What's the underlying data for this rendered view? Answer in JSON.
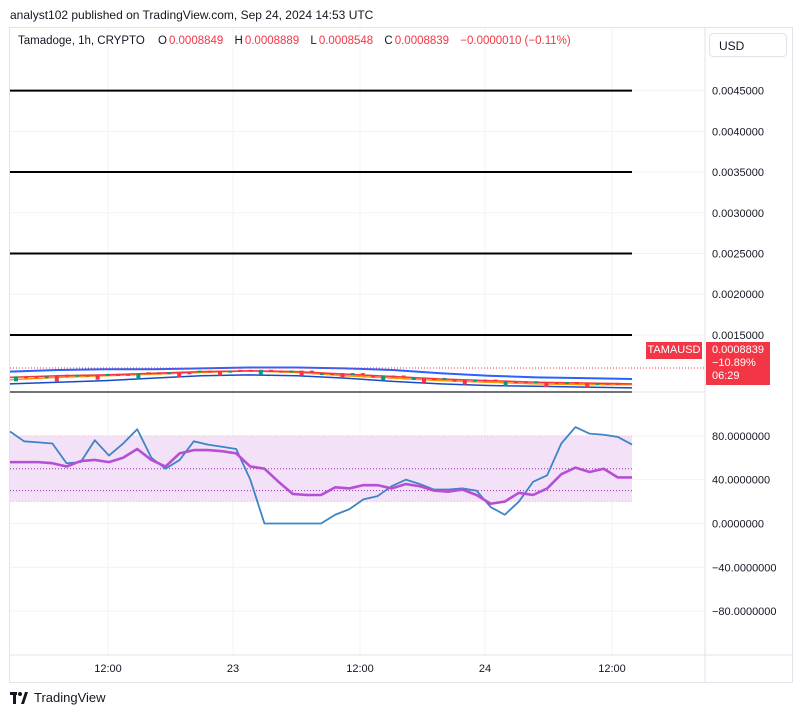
{
  "header": {
    "published": "analyst102 published on TradingView.com, Sep 24, 2024 14:53 UTC"
  },
  "legend": {
    "symbol": "Tamadoge, 1h, CRYPTO",
    "o_label": "O",
    "o_value": "0.0008849",
    "h_label": "H",
    "h_value": "0.0008889",
    "l_label": "L",
    "l_value": "0.0008548",
    "c_label": "C",
    "c_value": "0.0008839",
    "change": "−0.0000010 (−0.11%)"
  },
  "currency": "USD",
  "price_tag": {
    "symbol": "TAMAUSD",
    "price": "0.0008839",
    "pct": "−10.89%",
    "countdown": "06:29"
  },
  "footer": {
    "brand": "TradingView"
  },
  "colors": {
    "down": "#f23645",
    "up": "#089981",
    "blue_line": "#2962ff",
    "stoch_k": "#3d85c6",
    "stoch_d": "#b74fd6",
    "band_fill": "#f3e2f7"
  },
  "chart_data": [
    {
      "type": "line",
      "pane": "price",
      "ylim": [
        0.0008,
        0.0049
      ],
      "y_ticks": [
        "0.0045000",
        "0.0040000",
        "0.0035000",
        "0.0030000",
        "0.0025000",
        "0.0020000",
        "0.0015000"
      ],
      "y_tick_values": [
        0.0045,
        0.004,
        0.0035,
        0.003,
        0.0025,
        0.002,
        0.0015
      ],
      "x_ticks": [
        "12:00",
        "23",
        "12:00",
        "24",
        "12:00"
      ],
      "horizontal_levels": [
        0.0045,
        0.0035,
        0.0025,
        0.0015,
        0.0008
      ],
      "series": [
        {
          "values": [
            0.00105,
            0.00107,
            0.00108,
            0.00108,
            0.00109,
            0.0011,
            0.0011,
            0.00109,
            0.00107,
            0.00103,
            0.001,
            0.00098,
            0.00097,
            0.00096
          ]
        },
        {
          "values": [
            0.00095,
            0.00098,
            0.001,
            0.00102,
            0.00104,
            0.00106,
            0.00104,
            0.001,
            0.00097,
            0.00094,
            0.00092,
            0.0009,
            0.00089,
            0.00089
          ]
        },
        {
          "values": [
            0.00098,
            0.001,
            0.00101,
            0.00103,
            0.00105,
            0.00106,
            0.00105,
            0.00102,
            0.00099,
            0.00096,
            0.00094,
            0.00092,
            0.00091,
            0.0009
          ]
        },
        {
          "values": [
            0.0009,
            0.00092,
            0.00094,
            0.00097,
            0.001,
            0.00101,
            0.001,
            0.00097,
            0.00093,
            0.0009,
            0.00088,
            0.00087,
            0.00086,
            0.00085
          ]
        }
      ]
    },
    {
      "type": "line",
      "pane": "stochastic",
      "ylim": [
        -120,
        120
      ],
      "y_ticks": [
        "80.0000000",
        "40.0000000",
        "0.0000000",
        "−40.0000000",
        "−80.0000000"
      ],
      "y_tick_values": [
        80,
        40,
        0,
        -40,
        -80
      ],
      "band": [
        20,
        80
      ],
      "dotted_levels": [
        80,
        50,
        30,
        20
      ],
      "series": [
        {
          "values": [
            84,
            75,
            74,
            73,
            55,
            56,
            76,
            62,
            73,
            86,
            60,
            50,
            58,
            75,
            72,
            70,
            68,
            40,
            0,
            0,
            0,
            0,
            0,
            8,
            13,
            22,
            25,
            34,
            40,
            36,
            31,
            31,
            32,
            30,
            15,
            8,
            20,
            38,
            44,
            73,
            88,
            82,
            81,
            79,
            72
          ]
        },
        {
          "values": [
            56,
            56,
            56,
            55,
            52,
            57,
            58,
            56,
            60,
            68,
            58,
            52,
            64,
            67,
            67,
            66,
            64,
            52,
            50,
            38,
            27,
            26,
            26,
            33,
            32,
            35,
            35,
            32,
            36,
            34,
            30,
            29,
            31,
            26,
            18,
            20,
            28,
            26,
            32,
            45,
            51,
            47,
            50,
            42,
            42
          ]
        }
      ]
    }
  ]
}
